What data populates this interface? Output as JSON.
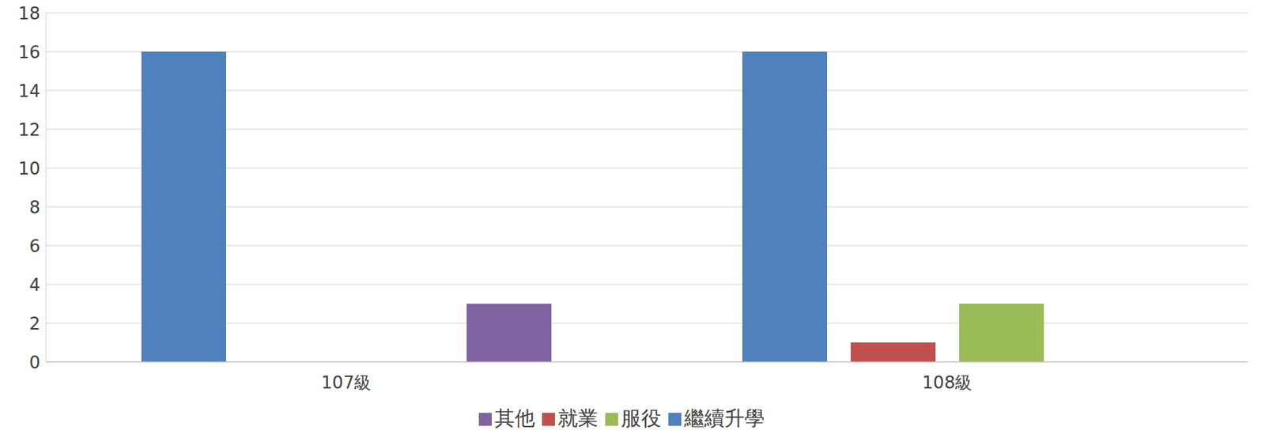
{
  "chart_data": {
    "type": "bar",
    "categories": [
      "107級",
      "108級"
    ],
    "series": [
      {
        "name": "繼續升學",
        "color": "#4f81bd",
        "values": [
          16,
          16
        ]
      },
      {
        "name": "就業",
        "color": "#c0504d",
        "values": [
          0,
          1
        ]
      },
      {
        "name": "服役",
        "color": "#9bbb59",
        "values": [
          0,
          3
        ]
      },
      {
        "name": "其他",
        "color": "#8064a2",
        "values": [
          3,
          0
        ]
      }
    ],
    "ylim": [
      0,
      18
    ],
    "yticks": [
      0,
      2,
      4,
      6,
      8,
      10,
      12,
      14,
      16,
      18
    ],
    "grid": true,
    "legend": "bottom"
  }
}
